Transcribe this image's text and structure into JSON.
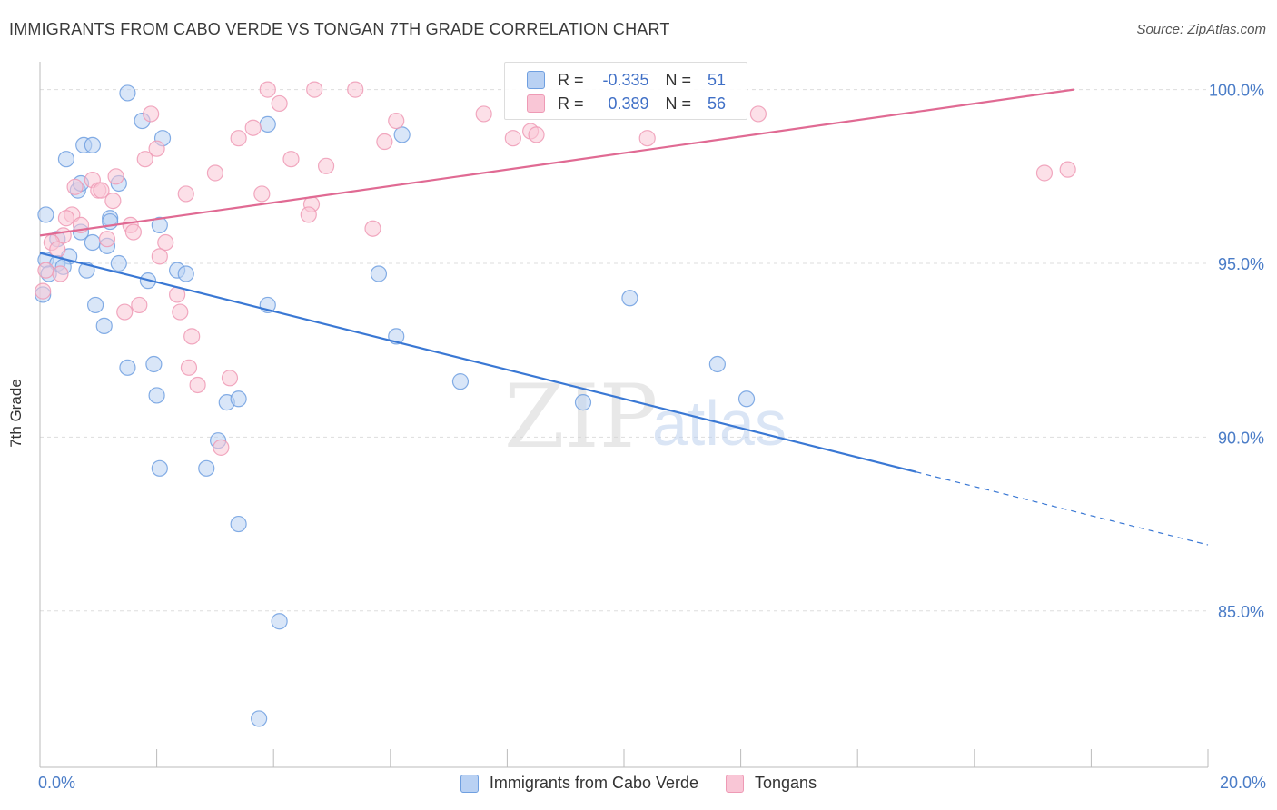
{
  "title": "IMMIGRANTS FROM CABO VERDE VS TONGAN 7TH GRADE CORRELATION CHART",
  "source": "Source: ZipAtlas.com",
  "watermark": {
    "zip": "ZIP",
    "atlas": "atlas"
  },
  "chart_data": {
    "type": "scatter",
    "ylabel": "7th Grade",
    "xlim": [
      0.0,
      20.0
    ],
    "ylim": [
      80.5,
      100.8
    ],
    "x_tick_labels": [
      "0.0%",
      "20.0%"
    ],
    "y_ticks": [
      {
        "value": 100.0,
        "label": "100.0%"
      },
      {
        "value": 95.0,
        "label": "95.0%"
      },
      {
        "value": 90.0,
        "label": "90.0%"
      },
      {
        "value": 85.0,
        "label": "85.0%"
      }
    ],
    "series": [
      {
        "name": "Immigrants from Cabo Verde",
        "color": "#6f9fe0",
        "fill": "#b9d1f3",
        "line_color": "#3a78d4",
        "R": "-0.335",
        "N": "51",
        "trend": {
          "x0": 0.0,
          "y0": 95.3,
          "x1": 15.0,
          "y1": 89.0,
          "dash_to_x": 20.0,
          "dash_to_y": 86.9
        },
        "points": [
          [
            1.5,
            99.9
          ],
          [
            1.75,
            99.1
          ],
          [
            0.75,
            98.4
          ],
          [
            0.9,
            98.4
          ],
          [
            2.1,
            98.6
          ],
          [
            0.45,
            98.0
          ],
          [
            0.65,
            97.1
          ],
          [
            0.7,
            97.3
          ],
          [
            1.35,
            97.3
          ],
          [
            0.1,
            96.4
          ],
          [
            1.2,
            96.3
          ],
          [
            1.2,
            96.2
          ],
          [
            0.7,
            95.9
          ],
          [
            0.3,
            95.7
          ],
          [
            0.9,
            95.6
          ],
          [
            1.15,
            95.5
          ],
          [
            0.5,
            95.2
          ],
          [
            0.1,
            95.1
          ],
          [
            0.3,
            95.0
          ],
          [
            1.35,
            95.0
          ],
          [
            0.8,
            94.8
          ],
          [
            2.35,
            94.8
          ],
          [
            2.5,
            94.7
          ],
          [
            2.05,
            96.1
          ],
          [
            1.85,
            94.5
          ],
          [
            0.05,
            94.1
          ],
          [
            0.95,
            93.8
          ],
          [
            1.1,
            93.2
          ],
          [
            3.9,
            99.0
          ],
          [
            6.2,
            98.7
          ],
          [
            3.9,
            93.8
          ],
          [
            6.1,
            92.9
          ],
          [
            5.8,
            94.7
          ],
          [
            7.2,
            91.6
          ],
          [
            9.3,
            91.0
          ],
          [
            10.1,
            94.0
          ],
          [
            11.6,
            92.1
          ],
          [
            12.1,
            91.1
          ],
          [
            1.5,
            92.0
          ],
          [
            1.95,
            92.1
          ],
          [
            2.0,
            91.2
          ],
          [
            3.2,
            91.0
          ],
          [
            3.4,
            91.1
          ],
          [
            3.05,
            89.9
          ],
          [
            2.05,
            89.1
          ],
          [
            2.85,
            89.1
          ],
          [
            3.4,
            87.5
          ],
          [
            4.1,
            84.7
          ],
          [
            3.75,
            81.9
          ],
          [
            0.4,
            94.9
          ],
          [
            0.15,
            94.7
          ]
        ]
      },
      {
        "name": "Tongans",
        "color": "#ee9ab5",
        "fill": "#f9c6d6",
        "line_color": "#e06a93",
        "R": "0.389",
        "N": "56",
        "trend": {
          "x0": 0.0,
          "y0": 95.8,
          "x1": 17.7,
          "y1": 100.0
        },
        "points": [
          [
            3.9,
            100.0
          ],
          [
            4.7,
            100.0
          ],
          [
            5.4,
            100.0
          ],
          [
            4.1,
            99.6
          ],
          [
            1.9,
            99.3
          ],
          [
            7.6,
            99.3
          ],
          [
            12.3,
            99.3
          ],
          [
            6.1,
            99.1
          ],
          [
            3.65,
            98.9
          ],
          [
            8.4,
            98.8
          ],
          [
            3.4,
            98.6
          ],
          [
            8.1,
            98.6
          ],
          [
            10.4,
            98.6
          ],
          [
            5.9,
            98.5
          ],
          [
            2.0,
            98.3
          ],
          [
            1.8,
            98.0
          ],
          [
            4.3,
            98.0
          ],
          [
            4.9,
            97.8
          ],
          [
            3.0,
            97.6
          ],
          [
            1.3,
            97.5
          ],
          [
            0.9,
            97.4
          ],
          [
            0.6,
            97.2
          ],
          [
            1.0,
            97.1
          ],
          [
            1.05,
            97.1
          ],
          [
            2.5,
            97.0
          ],
          [
            3.8,
            97.0
          ],
          [
            1.25,
            96.8
          ],
          [
            4.65,
            96.7
          ],
          [
            0.55,
            96.4
          ],
          [
            0.45,
            96.3
          ],
          [
            1.55,
            96.1
          ],
          [
            0.7,
            96.1
          ],
          [
            4.6,
            96.4
          ],
          [
            5.7,
            96.0
          ],
          [
            1.6,
            95.9
          ],
          [
            0.4,
            95.8
          ],
          [
            0.2,
            95.6
          ],
          [
            2.15,
            95.6
          ],
          [
            2.05,
            95.2
          ],
          [
            0.1,
            94.8
          ],
          [
            0.35,
            94.7
          ],
          [
            0.05,
            94.2
          ],
          [
            2.35,
            94.1
          ],
          [
            1.7,
            93.8
          ],
          [
            1.45,
            93.6
          ],
          [
            2.4,
            93.6
          ],
          [
            2.6,
            92.9
          ],
          [
            2.55,
            92.0
          ],
          [
            3.25,
            91.7
          ],
          [
            2.7,
            91.5
          ],
          [
            3.1,
            89.7
          ],
          [
            17.2,
            97.6
          ],
          [
            17.6,
            97.7
          ],
          [
            8.5,
            98.7
          ],
          [
            0.3,
            95.4
          ],
          [
            1.15,
            95.7
          ]
        ]
      }
    ]
  },
  "legend": {
    "r_label": "R =",
    "n_label": "N =",
    "items": [
      {
        "label": "Immigrants from Cabo Verde",
        "swatch_fill": "#b9d1f3",
        "swatch_border": "#6f9fe0"
      },
      {
        "label": "Tongans",
        "swatch_fill": "#f9c6d6",
        "swatch_border": "#ee9ab5"
      }
    ]
  }
}
